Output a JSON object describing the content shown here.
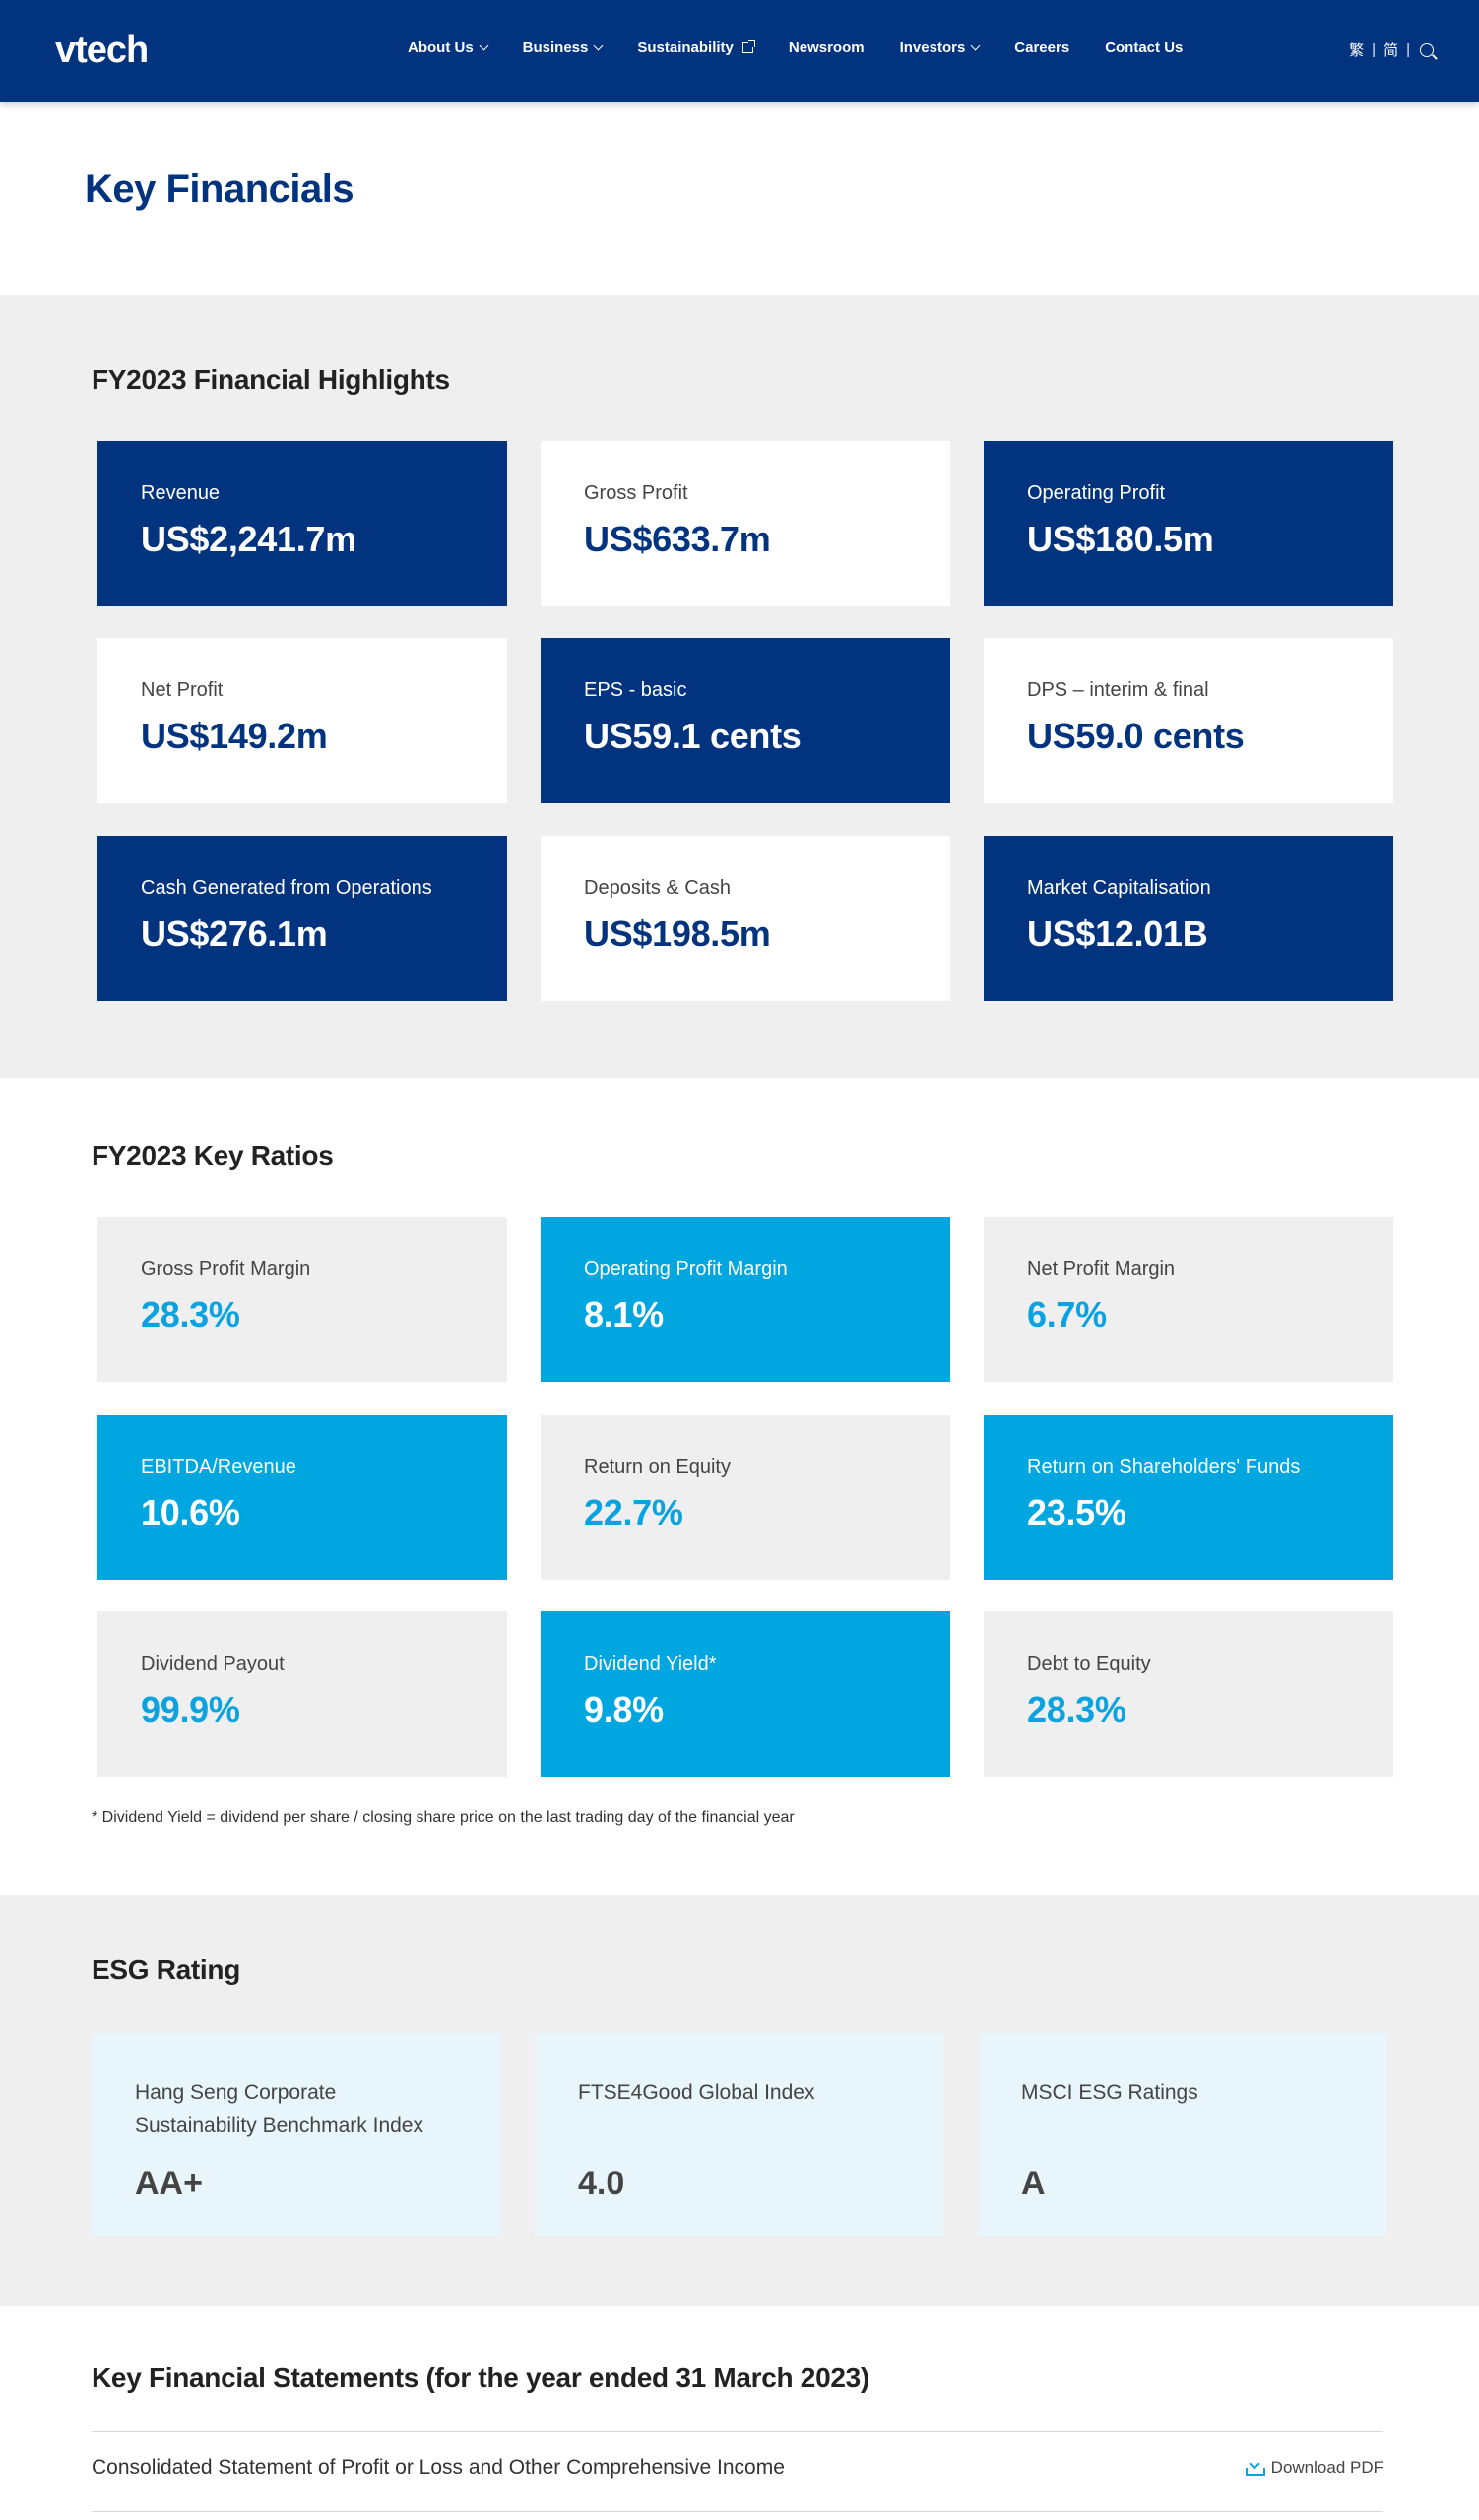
{
  "header": {
    "logo": "vtech",
    "nav": [
      {
        "label": "About Us",
        "type": "dropdown"
      },
      {
        "label": "Business",
        "type": "dropdown"
      },
      {
        "label": "Sustainability",
        "type": "external"
      },
      {
        "label": "Newsroom",
        "type": "link"
      },
      {
        "label": "Investors",
        "type": "dropdown"
      },
      {
        "label": "Careers",
        "type": "link"
      },
      {
        "label": "Contact Us",
        "type": "link"
      }
    ],
    "lang_trad": "繁",
    "lang_simp": "简",
    "separator": "|"
  },
  "page_title": "Key Financials",
  "highlights": {
    "title": "FY2023 Financial Highlights",
    "cards": [
      {
        "label": "Revenue",
        "value": "US$2,241.7m",
        "style": "navy"
      },
      {
        "label": "Gross Profit",
        "value": "US$633.7m",
        "style": "white"
      },
      {
        "label": "Operating Profit",
        "value": "US$180.5m",
        "style": "navy"
      },
      {
        "label": "Net Profit",
        "value": "US$149.2m",
        "style": "white"
      },
      {
        "label": "EPS - basic",
        "value": "US59.1 cents",
        "style": "navy"
      },
      {
        "label": "DPS – interim & final",
        "value": "US59.0 cents",
        "style": "white"
      },
      {
        "label": "Cash Generated from Operations",
        "value": "US$276.1m",
        "style": "navy"
      },
      {
        "label": "Deposits & Cash",
        "value": "US$198.5m",
        "style": "white"
      },
      {
        "label": "Market Capitalisation",
        "value": "US$12.01B",
        "style": "navy"
      }
    ]
  },
  "ratios": {
    "title": "FY2023 Key Ratios",
    "cards": [
      {
        "label": "Gross Profit Margin",
        "value": "28.3%",
        "style": "lightgrey"
      },
      {
        "label": "Operating Profit Margin",
        "value": "8.1%",
        "style": "cyan"
      },
      {
        "label": "Net Profit Margin",
        "value": "6.7%",
        "style": "lightgrey"
      },
      {
        "label": "EBITDA/Revenue",
        "value": "10.6%",
        "style": "cyan"
      },
      {
        "label": "Return on Equity",
        "value": "22.7%",
        "style": "lightgrey"
      },
      {
        "label": "Return on Shareholders' Funds",
        "value": "23.5%",
        "style": "cyan"
      },
      {
        "label": "Dividend Payout",
        "value": "99.9%",
        "style": "lightgrey"
      },
      {
        "label": "Dividend Yield*",
        "value": "9.8%",
        "style": "cyan"
      },
      {
        "label": "Debt to Equity",
        "value": "28.3%",
        "style": "lightgrey"
      }
    ],
    "footnote": "* Dividend Yield = dividend per share / closing share price on the last trading day of the financial year"
  },
  "esg": {
    "title": "ESG Rating",
    "cards": [
      {
        "label": "Hang Seng Corporate Sustainability Benchmark Index",
        "value": "AA+"
      },
      {
        "label": "FTSE4Good Global Index",
        "value": "4.0"
      },
      {
        "label": "MSCI ESG Ratings",
        "value": "A"
      }
    ]
  },
  "statements": {
    "title": "Key Financial Statements (for the year ended 31 March 2023)",
    "rows": [
      {
        "name": "Consolidated Statement of Profit or Loss and Other Comprehensive Income",
        "action": "Download PDF"
      }
    ]
  },
  "colors": {
    "navy": "#02337f",
    "cyan": "#00a6e0",
    "light_grey": "#efefef",
    "esg_bg": "#e8f5fb"
  }
}
